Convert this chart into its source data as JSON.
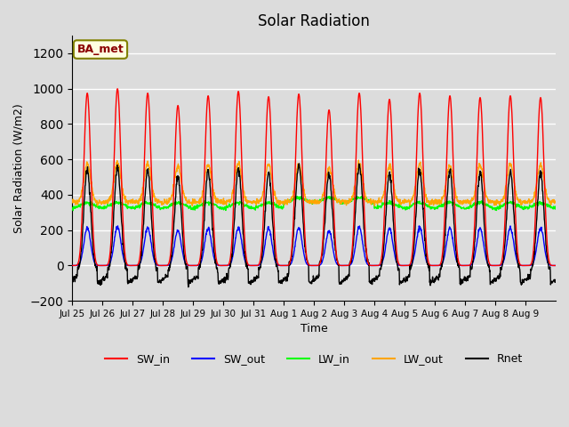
{
  "title": "Solar Radiation",
  "ylabel": "Solar Radiation (W/m2)",
  "xlabel": "Time",
  "xlabels": [
    "Jul 25",
    "Jul 26",
    "Jul 27",
    "Jul 28",
    "Jul 29",
    "Jul 30",
    "Jul 31",
    "Aug 1",
    "Aug 2",
    "Aug 3",
    "Aug 4",
    "Aug 5",
    "Aug 6",
    "Aug 7",
    "Aug 8",
    "Aug 9"
  ],
  "ylim": [
    -200,
    1300
  ],
  "yticks": [
    -200,
    0,
    200,
    400,
    600,
    800,
    1000,
    1200
  ],
  "bg_color": "#dcdcdc",
  "station_label": "BA_met",
  "n_days": 16,
  "sw_in_peaks": [
    975,
    1000,
    975,
    905,
    960,
    985,
    955,
    970,
    880,
    975,
    940,
    975,
    960,
    950,
    960,
    950
  ],
  "sw_out_scale": 0.22,
  "lw_in_base": 340,
  "lw_out_base": 390,
  "legend_labels": [
    "SW_in",
    "SW_out",
    "LW_in",
    "LW_out",
    "Rnet"
  ],
  "legend_colors": [
    "red",
    "blue",
    "lime",
    "orange",
    "black"
  ]
}
